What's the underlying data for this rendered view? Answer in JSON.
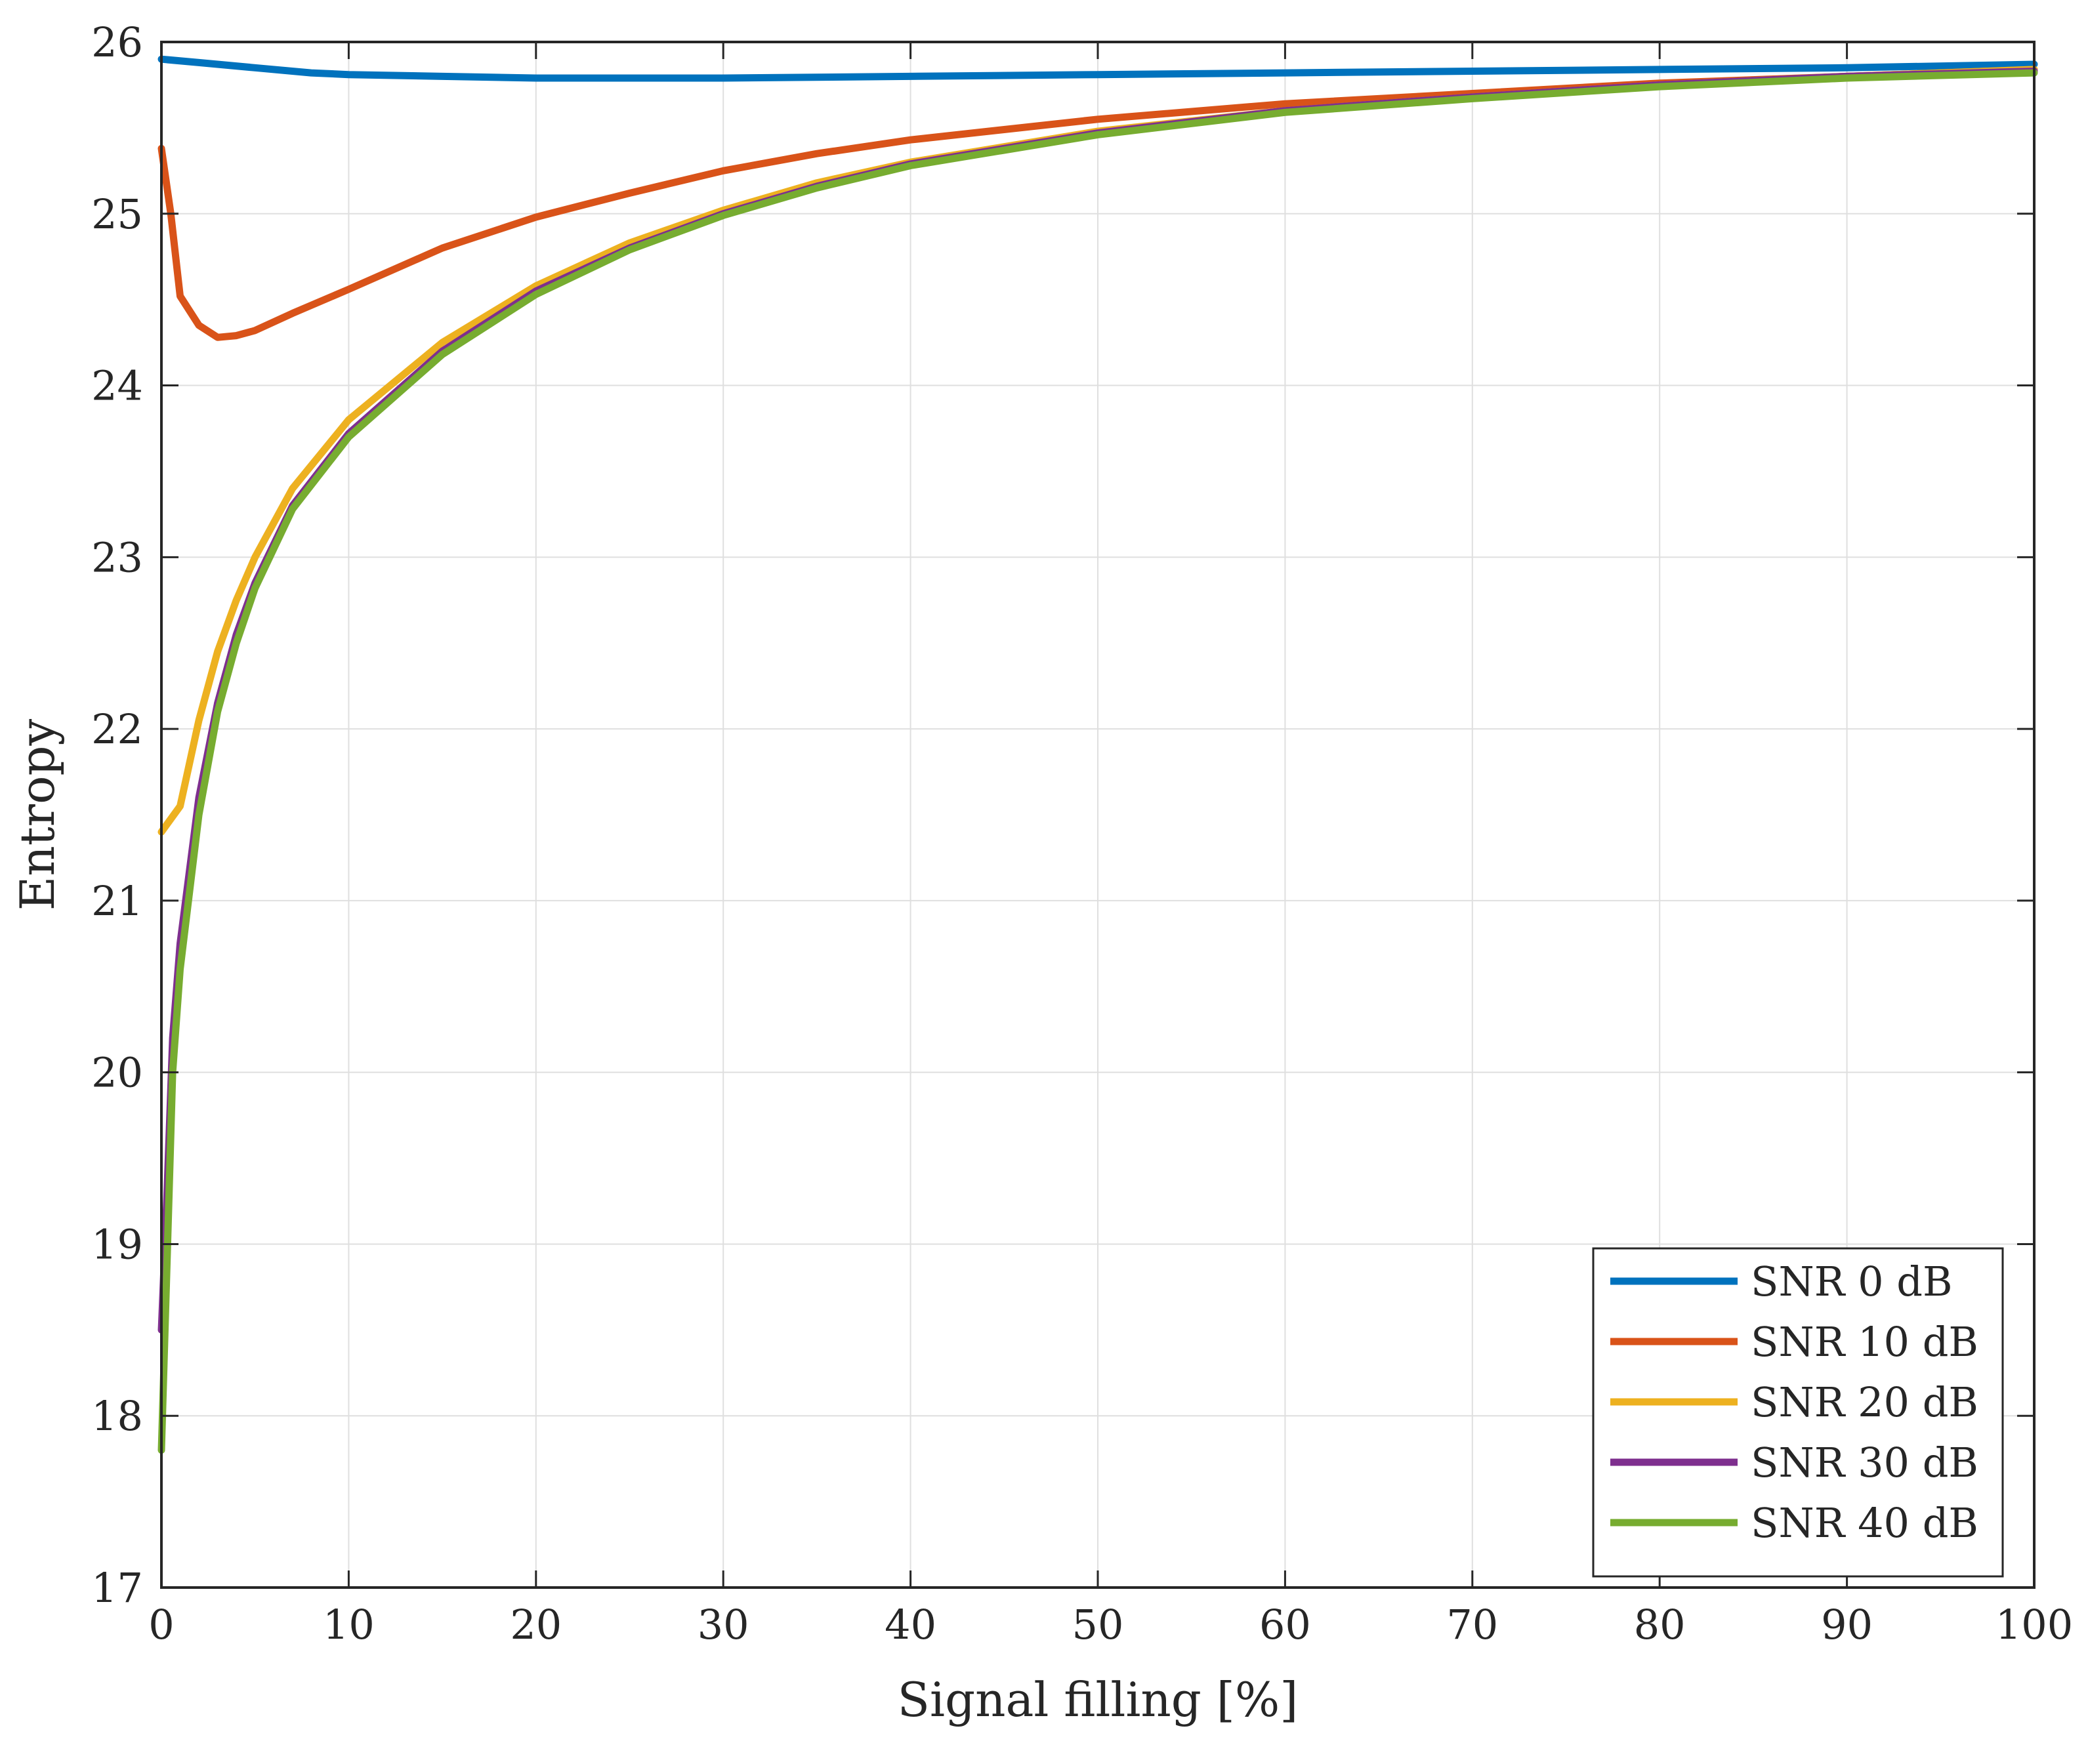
{
  "chart_data": {
    "type": "line",
    "title": "",
    "xlabel": "Signal filling [%]",
    "ylabel": "Entropy",
    "xlim": [
      0,
      100
    ],
    "ylim": [
      17,
      26
    ],
    "xticks": [
      0,
      10,
      20,
      30,
      40,
      50,
      60,
      70,
      80,
      90,
      100
    ],
    "yticks": [
      17,
      18,
      19,
      20,
      21,
      22,
      23,
      24,
      25,
      26
    ],
    "grid": true,
    "legend_position": "bottom-right",
    "series": [
      {
        "name": "SNR 0 dB",
        "color": "#0072BD",
        "points": [
          [
            0,
            25.9
          ],
          [
            2,
            25.88
          ],
          [
            5,
            25.85
          ],
          [
            8,
            25.82
          ],
          [
            10,
            25.81
          ],
          [
            15,
            25.8
          ],
          [
            20,
            25.79
          ],
          [
            25,
            25.79
          ],
          [
            30,
            25.79
          ],
          [
            40,
            25.8
          ],
          [
            50,
            25.81
          ],
          [
            60,
            25.82
          ],
          [
            70,
            25.83
          ],
          [
            80,
            25.84
          ],
          [
            90,
            25.85
          ],
          [
            100,
            25.87
          ]
        ]
      },
      {
        "name": "SNR 10 dB",
        "color": "#D95319",
        "points": [
          [
            0,
            25.38
          ],
          [
            0.5,
            25.0
          ],
          [
            1,
            24.52
          ],
          [
            2,
            24.35
          ],
          [
            3,
            24.28
          ],
          [
            4,
            24.29
          ],
          [
            5,
            24.32
          ],
          [
            7,
            24.42
          ],
          [
            10,
            24.56
          ],
          [
            15,
            24.8
          ],
          [
            20,
            24.98
          ],
          [
            25,
            25.12
          ],
          [
            30,
            25.25
          ],
          [
            35,
            25.35
          ],
          [
            40,
            25.43
          ],
          [
            50,
            25.55
          ],
          [
            60,
            25.64
          ],
          [
            70,
            25.7
          ],
          [
            80,
            25.76
          ],
          [
            90,
            25.8
          ],
          [
            100,
            25.84
          ]
        ]
      },
      {
        "name": "SNR 20 dB",
        "color": "#EDB120",
        "points": [
          [
            0,
            21.4
          ],
          [
            1,
            21.55
          ],
          [
            2,
            22.05
          ],
          [
            3,
            22.45
          ],
          [
            4,
            22.75
          ],
          [
            5,
            23.0
          ],
          [
            7,
            23.4
          ],
          [
            10,
            23.8
          ],
          [
            15,
            24.25
          ],
          [
            20,
            24.58
          ],
          [
            25,
            24.83
          ],
          [
            30,
            25.02
          ],
          [
            35,
            25.18
          ],
          [
            40,
            25.3
          ],
          [
            50,
            25.48
          ],
          [
            60,
            25.6
          ],
          [
            70,
            25.68
          ],
          [
            80,
            25.75
          ],
          [
            90,
            25.8
          ],
          [
            100,
            25.84
          ]
        ]
      },
      {
        "name": "SNR 30 dB",
        "color": "#7E2F8E",
        "points": [
          [
            0,
            18.5
          ],
          [
            0.3,
            19.3
          ],
          [
            0.6,
            20.2
          ],
          [
            1,
            20.75
          ],
          [
            2,
            21.6
          ],
          [
            3,
            22.15
          ],
          [
            4,
            22.55
          ],
          [
            5,
            22.85
          ],
          [
            7,
            23.3
          ],
          [
            10,
            23.72
          ],
          [
            15,
            24.2
          ],
          [
            20,
            24.55
          ],
          [
            25,
            24.8
          ],
          [
            30,
            25.0
          ],
          [
            35,
            25.16
          ],
          [
            40,
            25.29
          ],
          [
            50,
            25.47
          ],
          [
            60,
            25.6
          ],
          [
            70,
            25.68
          ],
          [
            80,
            25.75
          ],
          [
            90,
            25.8
          ],
          [
            100,
            25.83
          ]
        ]
      },
      {
        "name": "SNR 40 dB",
        "color": "#77AC30",
        "points": [
          [
            0,
            17.8
          ],
          [
            0.3,
            18.9
          ],
          [
            0.6,
            20.0
          ],
          [
            1,
            20.6
          ],
          [
            2,
            21.5
          ],
          [
            3,
            22.1
          ],
          [
            4,
            22.5
          ],
          [
            5,
            22.82
          ],
          [
            7,
            23.28
          ],
          [
            10,
            23.7
          ],
          [
            15,
            24.18
          ],
          [
            20,
            24.53
          ],
          [
            25,
            24.79
          ],
          [
            30,
            24.99
          ],
          [
            35,
            25.15
          ],
          [
            40,
            25.28
          ],
          [
            50,
            25.46
          ],
          [
            60,
            25.59
          ],
          [
            70,
            25.67
          ],
          [
            80,
            25.74
          ],
          [
            90,
            25.79
          ],
          [
            100,
            25.82
          ]
        ]
      }
    ]
  }
}
